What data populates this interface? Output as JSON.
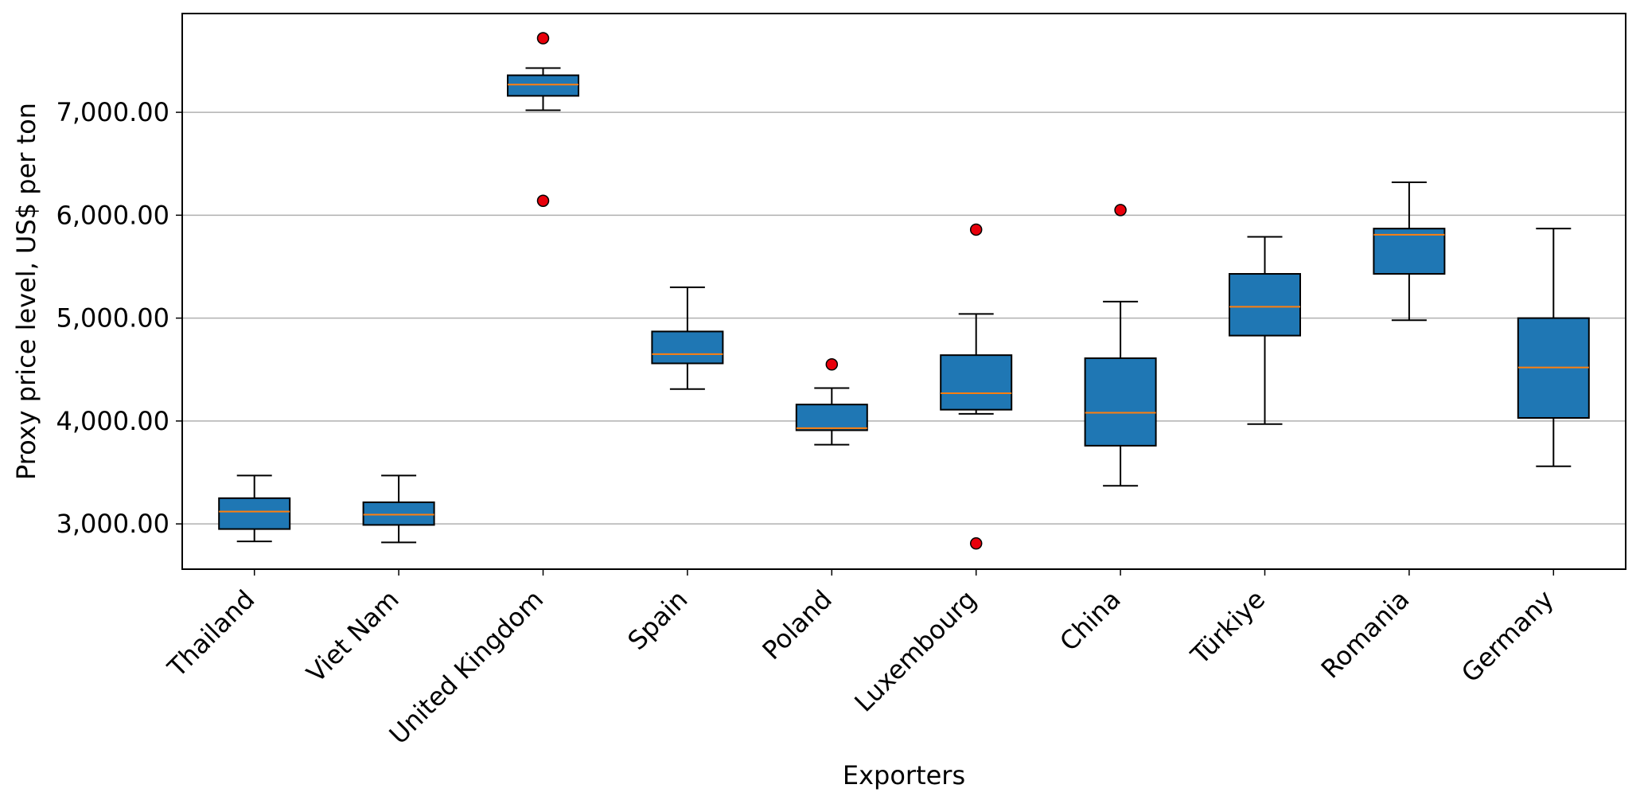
{
  "chart_data": {
    "type": "box",
    "title": "",
    "xlabel": "Exporters",
    "ylabel": "Proxy price level, US$ per ton",
    "ylim": [
      2560,
      7960
    ],
    "yticks": [
      3000,
      4000,
      5000,
      6000,
      7000
    ],
    "ytick_labels": [
      "3,000.00",
      "4,000.00",
      "5,000.00",
      "6,000.00",
      "7,000.00"
    ],
    "grid": "y-major",
    "legend": "none",
    "colors": {
      "box_fill": "#1f77b4",
      "median": "#ff7f0e",
      "outlier": "#e8000b",
      "grid": "#b0b0b0"
    },
    "categories": [
      "Thailand",
      "Viet Nam",
      "United Kingdom",
      "Spain",
      "Poland",
      "Luxembourg",
      "China",
      "Türkiye",
      "Romania",
      "Germany"
    ],
    "boxes": [
      {
        "category": "Thailand",
        "whisker_low": 2830,
        "q1": 2950,
        "median": 3120,
        "q3": 3250,
        "whisker_high": 3470,
        "outliers": []
      },
      {
        "category": "Viet Nam",
        "whisker_low": 2820,
        "q1": 2990,
        "median": 3090,
        "q3": 3210,
        "whisker_high": 3470,
        "outliers": []
      },
      {
        "category": "United Kingdom",
        "whisker_low": 7020,
        "q1": 7160,
        "median": 7270,
        "q3": 7360,
        "whisker_high": 7430,
        "outliers": [
          7720,
          6140
        ]
      },
      {
        "category": "Spain",
        "whisker_low": 4310,
        "q1": 4560,
        "median": 4650,
        "q3": 4870,
        "whisker_high": 5300,
        "outliers": []
      },
      {
        "category": "Poland",
        "whisker_low": 3770,
        "q1": 3910,
        "median": 3930,
        "q3": 4160,
        "whisker_high": 4320,
        "outliers": [
          4550
        ]
      },
      {
        "category": "Luxembourg",
        "whisker_low": 4070,
        "q1": 4110,
        "median": 4270,
        "q3": 4640,
        "whisker_high": 5040,
        "outliers": [
          5860,
          2810
        ]
      },
      {
        "category": "China",
        "whisker_low": 3370,
        "q1": 3760,
        "median": 4080,
        "q3": 4610,
        "whisker_high": 5160,
        "outliers": [
          6050
        ]
      },
      {
        "category": "Türkiye",
        "whisker_low": 3970,
        "q1": 4830,
        "median": 5110,
        "q3": 5430,
        "whisker_high": 5790,
        "outliers": []
      },
      {
        "category": "Romania",
        "whisker_low": 4980,
        "q1": 5430,
        "median": 5810,
        "q3": 5870,
        "whisker_high": 6320,
        "outliers": []
      },
      {
        "category": "Germany",
        "whisker_low": 3560,
        "q1": 4030,
        "median": 4520,
        "q3": 5000,
        "whisker_high": 5870,
        "outliers": []
      }
    ]
  }
}
